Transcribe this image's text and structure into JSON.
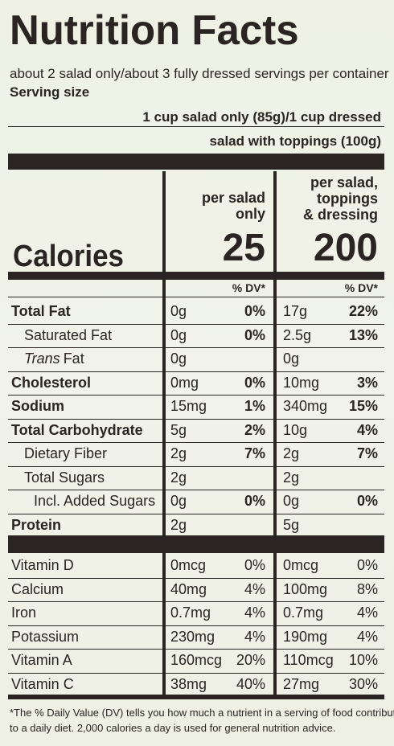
{
  "title": "Nutrition Facts",
  "servings_per_container": "about 2 salad only/about 3 fully dressed servings per container",
  "serving_size_label": "Serving size",
  "serving_size": [
    "1 cup salad only (85g)/1 cup dressed",
    "salad with toppings (100g)"
  ],
  "calories_label": "Calories",
  "columns": [
    {
      "header": [
        "per salad",
        "only"
      ],
      "calories": "25",
      "dv_label": "% DV*"
    },
    {
      "header": [
        "per salad,",
        "toppings",
        "& dressing"
      ],
      "calories": "200",
      "dv_label": "% DV*"
    }
  ],
  "nutrients": [
    {
      "name": "Total Fat",
      "values": [
        "0g",
        "0%",
        "17g",
        "22%"
      ]
    },
    {
      "name": "Saturated Fat",
      "values": [
        "0g",
        "0%",
        "2.5g",
        "13%"
      ]
    },
    {
      "italic": "Trans",
      "name": "Fat",
      "values": [
        "0g",
        null,
        "0g",
        null
      ]
    },
    {
      "name": "Cholesterol",
      "values": [
        "0mg",
        "0%",
        "10mg",
        "3%"
      ]
    },
    {
      "name": "Sodium",
      "values": [
        "15mg",
        "1%",
        "340mg",
        "15%"
      ]
    },
    {
      "name": "Total Carbohydrate",
      "values": [
        "5g",
        "2%",
        "10g",
        "4%"
      ]
    },
    {
      "name": "Dietary Fiber",
      "values": [
        "2g",
        "7%",
        "2g",
        "7%"
      ]
    },
    {
      "name": "Total Sugars",
      "values": [
        "2g",
        null,
        "2g",
        null
      ]
    },
    {
      "name": "Incl. Added Sugars",
      "values": [
        "0g",
        "0%",
        "0g",
        "0%"
      ]
    },
    {
      "name": "Protein",
      "values": [
        "2g",
        null,
        "5g",
        null
      ]
    }
  ],
  "vitamins": [
    {
      "name": "Vitamin D",
      "values": [
        "0mcg",
        "0%",
        "0mcg",
        "0%"
      ]
    },
    {
      "name": "Calcium",
      "values": [
        "40mg",
        "4%",
        "100mg",
        "8%"
      ]
    },
    {
      "name": "Iron",
      "values": [
        "0.7mg",
        "4%",
        "0.7mg",
        "4%"
      ]
    },
    {
      "name": "Potassium",
      "values": [
        "230mg",
        "4%",
        "190mg",
        "4%"
      ]
    },
    {
      "name": "Vitamin A",
      "values": [
        "160mcg",
        "20%",
        "110mcg",
        "10%"
      ]
    },
    {
      "name": "Vitamin C",
      "values": [
        "38mg",
        "40%",
        "27mg",
        "30%"
      ]
    }
  ],
  "footnote": [
    "*The % Daily Value (DV) tells you how much a nutrient in a serving of food contributes",
    "to a daily diet. 2,000 calories a day is used for general nutrition advice."
  ]
}
